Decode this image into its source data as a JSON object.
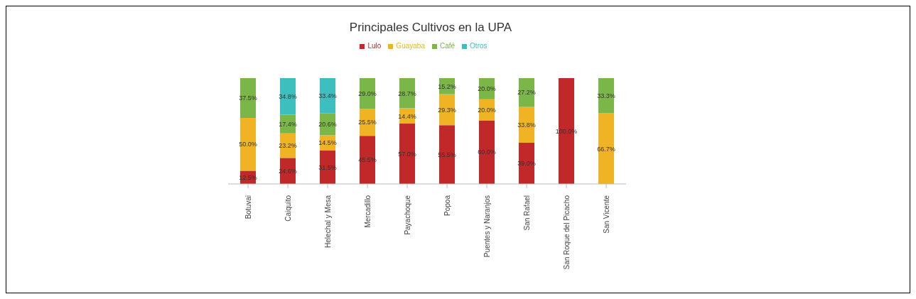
{
  "chart_data": {
    "type": "bar",
    "title": "Principales Cultivos en la UPA",
    "stacked": true,
    "legend": "top",
    "ylim": [
      0,
      100
    ],
    "tick_labels": "x",
    "categories": [
      "Botuvai",
      "Caiquito",
      "Helechal y Mesa",
      "Mercadillo",
      "Payachoque",
      "Popoa",
      "Puentes y Naranjos",
      "San Rafael",
      "San Roque del Picacho",
      "San Vicente"
    ],
    "series": [
      {
        "name": "Lulo",
        "color": "#c0282a",
        "values": [
          12.5,
          24.6,
          31.5,
          45.5,
          57.0,
          55.5,
          60.0,
          39.0,
          100.0,
          null
        ],
        "value_labels": [
          "12.5%",
          "24.6%",
          "31.5%",
          "45.5%",
          "57.0%",
          "55.5%",
          "60.0%",
          "39.0%",
          "100.0%",
          null
        ]
      },
      {
        "name": "Guayaba",
        "color": "#f0b323",
        "values": [
          50.0,
          23.2,
          14.5,
          25.5,
          14.4,
          29.3,
          20.0,
          33.8,
          null,
          66.7
        ],
        "value_labels": [
          "50.0%",
          "23.2%",
          "14.5%",
          "25.5%",
          "14.4%",
          "29.3%",
          "20.0%",
          "33.8%",
          null,
          "66.7%"
        ]
      },
      {
        "name": "Café",
        "color": "#7ab648",
        "values": [
          37.5,
          17.4,
          20.6,
          29.0,
          28.7,
          15.2,
          20.0,
          27.2,
          null,
          33.3
        ],
        "value_labels": [
          "37.5%",
          "17.4%",
          "20.6%",
          "29.0%",
          "28.7%",
          "15.2%",
          "20.0%",
          "27.2%",
          null,
          "33.3%"
        ]
      },
      {
        "name": "Otros",
        "color": "#3ebfbf",
        "values": [
          null,
          34.8,
          33.4,
          null,
          null,
          null,
          null,
          null,
          null,
          null
        ],
        "value_labels": [
          null,
          "34.8%",
          "33.4%",
          null,
          null,
          null,
          null,
          null,
          null,
          null
        ]
      }
    ]
  }
}
